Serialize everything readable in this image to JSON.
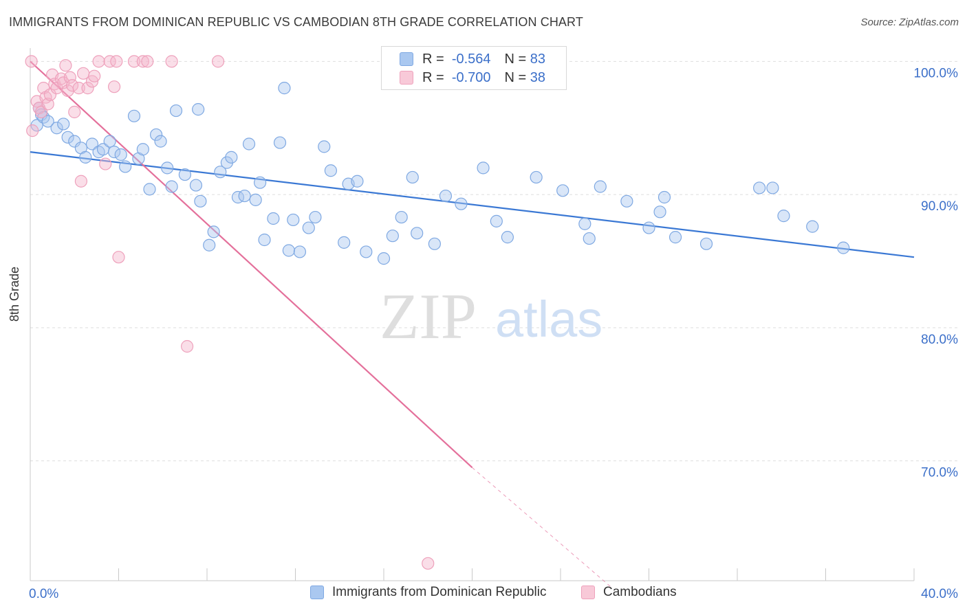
{
  "header": {
    "title": "IMMIGRANTS FROM DOMINICAN REPUBLIC VS CAMBODIAN 8TH GRADE CORRELATION CHART",
    "source": "Source: ZipAtlas.com"
  },
  "legend": {
    "rows": [
      {
        "r_label": "R =",
        "r_value": "-0.564",
        "n_label": "N =",
        "n_value": "83"
      },
      {
        "r_label": "R =",
        "r_value": "-0.700",
        "n_label": "N =",
        "n_value": "38"
      }
    ]
  },
  "watermark": {
    "zip": "ZIP",
    "atlas": "atlas"
  },
  "colors": {
    "blue": "#3a78d4",
    "blue_fill": "#aac8f0",
    "pink": "#e4709b",
    "pink_fill": "#f4b6cb",
    "axis_label": "#3b6fc9",
    "grid": "#dddddd"
  },
  "chart_data": {
    "type": "scatter",
    "title": "IMMIGRANTS FROM DOMINICAN REPUBLIC VS CAMBODIAN 8TH GRADE CORRELATION CHART",
    "xlabel": "",
    "ylabel": "8th Grade",
    "xlim": [
      0,
      40
    ],
    "ylim": [
      61,
      101
    ],
    "x_tick_labels": [
      "0.0%",
      "40.0%"
    ],
    "y_ticks": [
      70,
      80,
      90,
      100
    ],
    "y_tick_labels": [
      "70.0%",
      "80.0%",
      "90.0%",
      "100.0%"
    ],
    "grid": true,
    "legend_position": "top-center",
    "series": [
      {
        "name": "Immigrants from Dominican Republic",
        "color": "#3a78d4",
        "trend": {
          "x": [
            0,
            40
          ],
          "y": [
            93.2,
            85.3
          ]
        },
        "points": [
          [
            0.3,
            95.2
          ],
          [
            0.4,
            96.5
          ],
          [
            0.5,
            96.0
          ],
          [
            0.6,
            95.8
          ],
          [
            0.8,
            95.5
          ],
          [
            1.2,
            95.0
          ],
          [
            1.5,
            95.3
          ],
          [
            1.7,
            94.3
          ],
          [
            2.0,
            94.0
          ],
          [
            2.3,
            93.5
          ],
          [
            2.5,
            92.8
          ],
          [
            2.8,
            93.8
          ],
          [
            3.1,
            93.2
          ],
          [
            3.3,
            93.4
          ],
          [
            3.6,
            94.0
          ],
          [
            3.8,
            93.2
          ],
          [
            4.1,
            93.0
          ],
          [
            4.3,
            92.1
          ],
          [
            4.7,
            95.9
          ],
          [
            4.9,
            92.7
          ],
          [
            5.1,
            93.4
          ],
          [
            5.4,
            90.4
          ],
          [
            5.7,
            94.5
          ],
          [
            5.9,
            94.0
          ],
          [
            6.2,
            92.0
          ],
          [
            6.4,
            90.6
          ],
          [
            6.6,
            96.3
          ],
          [
            7.0,
            91.5
          ],
          [
            7.5,
            90.7
          ],
          [
            7.6,
            96.4
          ],
          [
            7.7,
            89.5
          ],
          [
            8.1,
            86.2
          ],
          [
            8.3,
            87.2
          ],
          [
            8.6,
            91.7
          ],
          [
            8.9,
            92.4
          ],
          [
            9.1,
            92.8
          ],
          [
            9.4,
            89.8
          ],
          [
            9.7,
            89.9
          ],
          [
            9.9,
            93.8
          ],
          [
            10.2,
            89.6
          ],
          [
            10.4,
            90.9
          ],
          [
            10.6,
            86.6
          ],
          [
            11.0,
            88.2
          ],
          [
            11.3,
            93.9
          ],
          [
            11.5,
            98.0
          ],
          [
            11.7,
            85.8
          ],
          [
            11.9,
            88.1
          ],
          [
            12.2,
            85.7
          ],
          [
            12.6,
            87.5
          ],
          [
            12.9,
            88.3
          ],
          [
            13.3,
            93.6
          ],
          [
            13.6,
            91.8
          ],
          [
            14.2,
            86.4
          ],
          [
            14.4,
            90.8
          ],
          [
            14.8,
            91.0
          ],
          [
            15.2,
            85.7
          ],
          [
            16.0,
            85.2
          ],
          [
            16.4,
            86.9
          ],
          [
            16.8,
            88.3
          ],
          [
            17.3,
            91.3
          ],
          [
            17.5,
            87.1
          ],
          [
            18.3,
            86.3
          ],
          [
            18.8,
            89.9
          ],
          [
            19.5,
            89.3
          ],
          [
            20.5,
            92.0
          ],
          [
            21.1,
            88.0
          ],
          [
            21.6,
            86.8
          ],
          [
            22.9,
            91.3
          ],
          [
            24.1,
            90.3
          ],
          [
            25.1,
            87.8
          ],
          [
            25.3,
            86.7
          ],
          [
            25.8,
            90.6
          ],
          [
            27.0,
            89.5
          ],
          [
            28.0,
            87.5
          ],
          [
            28.5,
            88.7
          ],
          [
            28.7,
            89.8
          ],
          [
            29.2,
            86.8
          ],
          [
            30.6,
            86.3
          ],
          [
            33.0,
            90.5
          ],
          [
            33.6,
            90.5
          ],
          [
            34.1,
            88.4
          ],
          [
            35.4,
            87.6
          ],
          [
            36.8,
            86.0
          ]
        ]
      },
      {
        "name": "Cambodians",
        "color": "#e4709b",
        "trend": {
          "x": [
            0,
            20
          ],
          "y": [
            100,
            69.5
          ]
        },
        "trend_dashed": {
          "x": [
            20,
            26.3
          ],
          "y": [
            69.5,
            60.5
          ]
        },
        "points": [
          [
            0.1,
            94.8
          ],
          [
            0.3,
            97.0
          ],
          [
            0.4,
            96.5
          ],
          [
            0.5,
            96.2
          ],
          [
            0.6,
            98.0
          ],
          [
            0.7,
            97.3
          ],
          [
            0.8,
            96.8
          ],
          [
            0.9,
            97.5
          ],
          [
            1.0,
            99.0
          ],
          [
            1.1,
            98.3
          ],
          [
            1.2,
            98.0
          ],
          [
            1.4,
            98.7
          ],
          [
            1.5,
            98.4
          ],
          [
            1.6,
            99.7
          ],
          [
            1.7,
            97.8
          ],
          [
            1.8,
            98.8
          ],
          [
            1.9,
            98.2
          ],
          [
            2.0,
            96.2
          ],
          [
            2.2,
            98.0
          ],
          [
            2.3,
            91.0
          ],
          [
            2.4,
            99.1
          ],
          [
            2.6,
            98.0
          ],
          [
            2.8,
            98.5
          ],
          [
            2.9,
            98.9
          ],
          [
            3.1,
            100.0
          ],
          [
            3.4,
            92.3
          ],
          [
            3.6,
            100.0
          ],
          [
            3.8,
            98.1
          ],
          [
            3.9,
            100.0
          ],
          [
            4.0,
            85.3
          ],
          [
            4.7,
            100.0
          ],
          [
            5.1,
            100.0
          ],
          [
            5.3,
            100.0
          ],
          [
            6.4,
            100.0
          ],
          [
            7.1,
            78.6
          ],
          [
            8.5,
            100.0
          ],
          [
            18.0,
            62.3
          ],
          [
            0.05,
            100.0
          ]
        ]
      }
    ]
  },
  "bottom_legend": {
    "items": [
      "Immigrants from Dominican Republic",
      "Cambodians"
    ]
  }
}
